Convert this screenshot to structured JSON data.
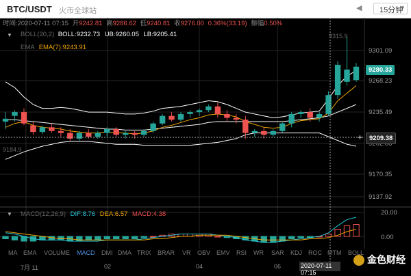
{
  "header": {
    "pair": "BTC/USDT",
    "source": "火币全球站",
    "nav_symbol": "◀",
    "timeframe": "15分钟"
  },
  "ohlc_line": {
    "time": "时间:2020-07-11 07:15",
    "open_label": "开",
    "open": "9242.81",
    "high_label": "高",
    "high": "9286.62",
    "low_label": "低",
    "low": "9240.81",
    "close_label": "收",
    "close": "9276.00",
    "change": "0.36%(33.19)",
    "amp_label": "振幅",
    "amp": "0.50%"
  },
  "indicators": {
    "boll_name": "BOLL(20,2)",
    "boll": "BOLL:9232.73",
    "ub": "UB:9260.05",
    "lb": "LB:9205.41",
    "ema_name": "EMA",
    "ema": "EMA(7):9243.91",
    "macd_name": "MACD(12,26,9)",
    "dif": "DIF:8.76",
    "dea": "DEA:6.57",
    "macd": "MACD:4.38"
  },
  "price_axis": {
    "ticks": [
      "9301.09",
      "9268.23",
      "9235.49",
      "9202.66",
      "9170.35",
      "9137.92"
    ],
    "current": "9280.33",
    "crosshair": "9209.38",
    "high_mark": "9315.9",
    "low_mark": "9184.9",
    "plus": "+"
  },
  "macd_axis": {
    "ticks": [
      "20.00",
      "0.00"
    ]
  },
  "indicator_tabs": [
    "MA",
    "EMA",
    "VOLUME",
    "MACD",
    "DMI",
    "DMA",
    "TRIX",
    "BRAR",
    "VR",
    "OBV",
    "EMV",
    "RSI",
    "WR",
    "SAR",
    "KDJ",
    "ROC",
    "MTM",
    "BOLL"
  ],
  "active_tab": "MACD",
  "dates": {
    "d1": "7月 11",
    "d2": "02",
    "d3": "04",
    "d4": "06",
    "tip": "2020-07-11 07:15"
  },
  "watermark": "金色财经",
  "colors": {
    "up": "#26a69a",
    "down": "#ef5350",
    "ema": "#f0a500",
    "boll": "#ffffff",
    "dif": "#ffffff",
    "dea": "#f0a500"
  },
  "chart_data": {
    "type": "candlestick",
    "y_range": [
      9130,
      9320
    ],
    "candles": [
      {
        "o": 9226,
        "h": 9236,
        "l": 9218,
        "c": 9229
      },
      {
        "o": 9232,
        "h": 9238,
        "l": 9226,
        "c": 9236
      },
      {
        "o": 9236,
        "h": 9240,
        "l": 9222,
        "c": 9224
      },
      {
        "o": 9222,
        "h": 9226,
        "l": 9212,
        "c": 9215
      },
      {
        "o": 9215,
        "h": 9222,
        "l": 9213,
        "c": 9220
      },
      {
        "o": 9220,
        "h": 9224,
        "l": 9214,
        "c": 9216
      },
      {
        "o": 9216,
        "h": 9220,
        "l": 9210,
        "c": 9214
      },
      {
        "o": 9214,
        "h": 9218,
        "l": 9206,
        "c": 9208
      },
      {
        "o": 9208,
        "h": 9216,
        "l": 9206,
        "c": 9214
      },
      {
        "o": 9214,
        "h": 9218,
        "l": 9208,
        "c": 9210
      },
      {
        "o": 9210,
        "h": 9216,
        "l": 9208,
        "c": 9214
      },
      {
        "o": 9214,
        "h": 9220,
        "l": 9210,
        "c": 9218
      },
      {
        "o": 9218,
        "h": 9220,
        "l": 9210,
        "c": 9212
      },
      {
        "o": 9212,
        "h": 9216,
        "l": 9208,
        "c": 9214
      },
      {
        "o": 9214,
        "h": 9216,
        "l": 9208,
        "c": 9212
      },
      {
        "o": 9212,
        "h": 9218,
        "l": 9210,
        "c": 9216
      },
      {
        "o": 9216,
        "h": 9226,
        "l": 9214,
        "c": 9224
      },
      {
        "o": 9224,
        "h": 9234,
        "l": 9222,
        "c": 9232
      },
      {
        "o": 9232,
        "h": 9236,
        "l": 9226,
        "c": 9228
      },
      {
        "o": 9228,
        "h": 9236,
        "l": 9226,
        "c": 9234
      },
      {
        "o": 9234,
        "h": 9238,
        "l": 9230,
        "c": 9236
      },
      {
        "o": 9236,
        "h": 9240,
        "l": 9232,
        "c": 9238
      },
      {
        "o": 9238,
        "h": 9244,
        "l": 9236,
        "c": 9242
      },
      {
        "o": 9242,
        "h": 9246,
        "l": 9230,
        "c": 9234
      },
      {
        "o": 9234,
        "h": 9238,
        "l": 9226,
        "c": 9230
      },
      {
        "o": 9230,
        "h": 9234,
        "l": 9224,
        "c": 9228
      },
      {
        "o": 9228,
        "h": 9232,
        "l": 9208,
        "c": 9214
      },
      {
        "o": 9214,
        "h": 9218,
        "l": 9210,
        "c": 9216
      },
      {
        "o": 9216,
        "h": 9220,
        "l": 9208,
        "c": 9212
      },
      {
        "o": 9212,
        "h": 9218,
        "l": 9210,
        "c": 9216
      },
      {
        "o": 9216,
        "h": 9226,
        "l": 9214,
        "c": 9224
      },
      {
        "o": 9224,
        "h": 9236,
        "l": 9220,
        "c": 9234
      },
      {
        "o": 9234,
        "h": 9238,
        "l": 9230,
        "c": 9236
      },
      {
        "o": 9236,
        "h": 9240,
        "l": 9226,
        "c": 9230
      },
      {
        "o": 9230,
        "h": 9236,
        "l": 9226,
        "c": 9234
      },
      {
        "o": 9234,
        "h": 9258,
        "l": 9232,
        "c": 9254
      },
      {
        "o": 9254,
        "h": 9290,
        "l": 9250,
        "c": 9286
      },
      {
        "o": 9268,
        "h": 9316,
        "l": 9264,
        "c": 9281
      },
      {
        "o": 9270,
        "h": 9288,
        "l": 9268,
        "c": 9284
      }
    ],
    "boll_ub": [
      9268,
      9262,
      9252,
      9244,
      9240,
      9240,
      9241,
      9240,
      9238,
      9236,
      9236,
      9236,
      9235,
      9234,
      9234,
      9235,
      9237,
      9240,
      9241,
      9242,
      9244,
      9246,
      9248,
      9247,
      9244,
      9240,
      9236,
      9234,
      9232,
      9230,
      9231,
      9233,
      9235,
      9236,
      9237,
      9250,
      9264,
      9274,
      9280
    ],
    "boll_mid": [
      9228,
      9228,
      9227,
      9226,
      9225,
      9224,
      9223,
      9222,
      9221,
      9220,
      9219,
      9218,
      9218,
      9217,
      9217,
      9217,
      9218,
      9219,
      9220,
      9221,
      9222,
      9223,
      9225,
      9226,
      9226,
      9226,
      9226,
      9226,
      9226,
      9226,
      9226,
      9227,
      9228,
      9229,
      9230,
      9232,
      9236,
      9240,
      9244
    ],
    "boll_lb": [
      9186,
      9190,
      9194,
      9197,
      9200,
      9202,
      9204,
      9205,
      9205,
      9205,
      9204,
      9203,
      9202,
      9202,
      9202,
      9201,
      9201,
      9201,
      9201,
      9201,
      9201,
      9202,
      9203,
      9204,
      9206,
      9208,
      9212,
      9214,
      9214,
      9214,
      9214,
      9214,
      9214,
      9214,
      9214,
      9210,
      9206,
      9202,
      9200
    ],
    "ema7": [
      9220,
      9224,
      9226,
      9222,
      9220,
      9219,
      9218,
      9216,
      9215,
      9214,
      9214,
      9215,
      9214,
      9214,
      9213,
      9214,
      9216,
      9220,
      9222,
      9225,
      9228,
      9230,
      9233,
      9234,
      9233,
      9231,
      9226,
      9223,
      9220,
      9219,
      9220,
      9224,
      9227,
      9228,
      9229,
      9235,
      9248,
      9256,
      9264
    ],
    "macd_hist": [
      -2,
      -3,
      -4,
      -4,
      -3,
      -3,
      -3,
      -4,
      -4,
      -3,
      -3,
      -2,
      -2,
      -2,
      -2,
      -1,
      0,
      1,
      2,
      2,
      2,
      2,
      2,
      0,
      -1,
      -2,
      -3,
      -4,
      -5,
      -5,
      -4,
      -2,
      -1,
      -1,
      0,
      2,
      6,
      9,
      10
    ],
    "dif": [
      3,
      2,
      0,
      -2,
      -3,
      -3,
      -3,
      -4,
      -4,
      -4,
      -4,
      -3,
      -3,
      -3,
      -3,
      -2,
      -1,
      0,
      1,
      2,
      2,
      2,
      2,
      1,
      0,
      -1,
      -3,
      -4,
      -5,
      -5,
      -4,
      -3,
      -2,
      -1,
      0,
      3,
      9,
      14,
      16
    ],
    "dea": [
      4,
      3,
      2,
      1,
      0,
      -1,
      -2,
      -2,
      -3,
      -3,
      -3,
      -3,
      -3,
      -3,
      -3,
      -3,
      -2,
      -2,
      -1,
      0,
      0,
      1,
      1,
      1,
      1,
      0,
      -1,
      -2,
      -3,
      -3,
      -3,
      -3,
      -3,
      -2,
      -2,
      -1,
      1,
      4,
      6
    ]
  }
}
